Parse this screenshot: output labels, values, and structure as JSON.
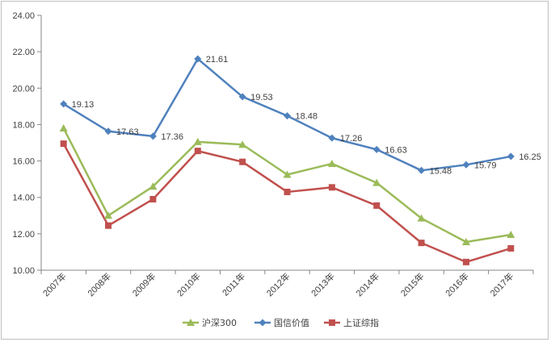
{
  "chart_data": {
    "type": "line",
    "categories": [
      "2007年",
      "2008年",
      "2009年",
      "2010年",
      "2011年",
      "2012年",
      "2013年",
      "2014年",
      "2015年",
      "2016年",
      "2017年"
    ],
    "ylim": [
      10,
      24
    ],
    "yticks": [
      "10.00",
      "12.00",
      "14.00",
      "16.00",
      "18.00",
      "20.00",
      "22.00",
      "24.00"
    ],
    "grid": false,
    "legend_position": "bottom",
    "series": [
      {
        "name": "沪深300",
        "color": "#9bbb59",
        "marker": "triangle",
        "values": [
          17.8,
          13.0,
          14.6,
          17.05,
          16.9,
          15.25,
          15.85,
          14.8,
          12.85,
          11.55,
          11.95
        ]
      },
      {
        "name": "国信价值",
        "color": "#4f81bd",
        "marker": "diamond",
        "values": [
          19.13,
          17.63,
          17.36,
          21.61,
          19.53,
          18.48,
          17.26,
          16.63,
          15.48,
          15.79,
          16.25
        ],
        "data_labels": [
          "19.13",
          "17.63",
          "17.36",
          "21.61",
          "19.53",
          "18.48",
          "17.26",
          "16.63",
          "15.48",
          "15.79",
          "16.25"
        ]
      },
      {
        "name": "上证综指",
        "color": "#c0504d",
        "marker": "square",
        "values": [
          16.95,
          12.45,
          13.9,
          16.55,
          15.95,
          14.3,
          14.55,
          13.55,
          11.5,
          10.45,
          11.2
        ]
      }
    ]
  }
}
